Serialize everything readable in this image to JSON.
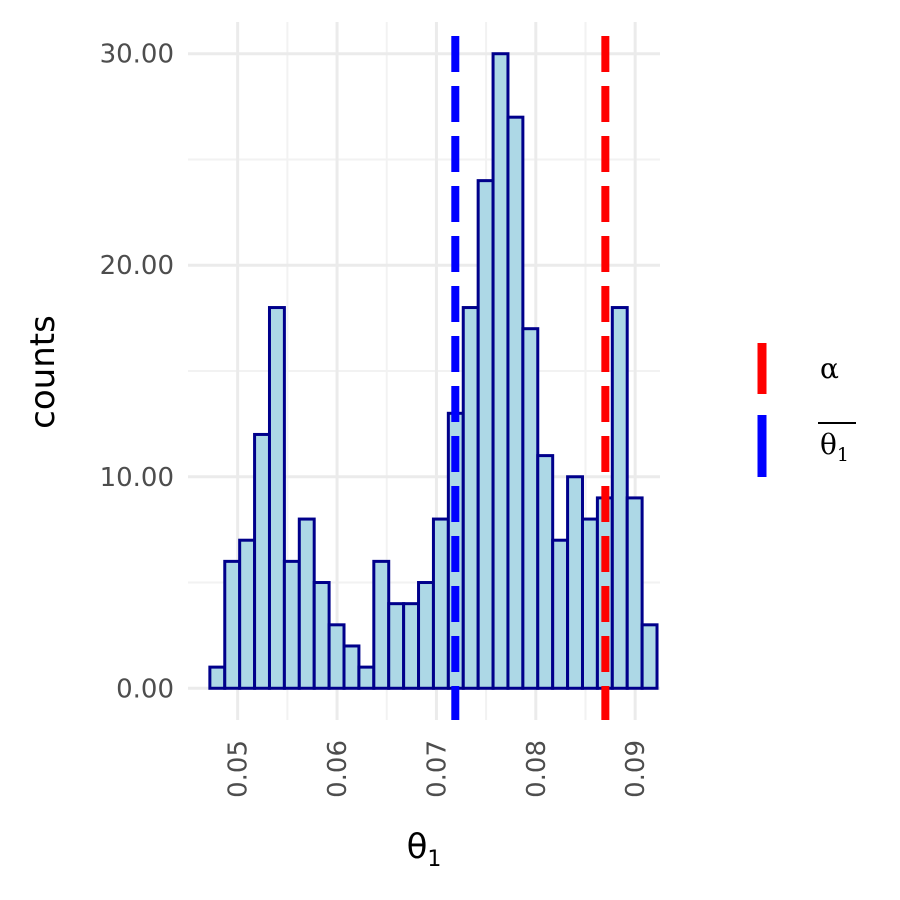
{
  "chart_data": {
    "type": "bar",
    "subtype": "histogram",
    "xlabel": "θ",
    "xlabel_subscript": "1",
    "ylabel": "counts",
    "xlim": [
      0.045,
      0.0925
    ],
    "ylim": [
      -1.5,
      31.5
    ],
    "x_ticks": [
      0.05,
      0.06,
      0.07,
      0.08,
      0.09
    ],
    "x_tick_labels": [
      "0.05",
      "0.06",
      "0.07",
      "0.08",
      "0.09"
    ],
    "y_ticks": [
      0,
      10,
      20,
      30
    ],
    "y_tick_labels": [
      "0.00",
      "10.00",
      "20.00",
      "30.00"
    ],
    "grid": true,
    "bin_start": 0.0472,
    "bin_width": 0.0015,
    "values": [
      1,
      6,
      7,
      12,
      18,
      6,
      8,
      5,
      3,
      2,
      1,
      6,
      4,
      4,
      5,
      8,
      13,
      18,
      24,
      30,
      27,
      17,
      11,
      7,
      10,
      8,
      9,
      18,
      9,
      3
    ],
    "bar_fill": "#add8e6",
    "bar_outline": "#00008b",
    "vlines": [
      {
        "name": "α",
        "x": 0.087,
        "color": "#ff0000",
        "style": "dashed"
      },
      {
        "name": "θ",
        "name_subscript": "1",
        "overline": true,
        "x": 0.0719,
        "color": "#0000ff",
        "style": "dashed"
      }
    ],
    "legend_position": "right"
  }
}
